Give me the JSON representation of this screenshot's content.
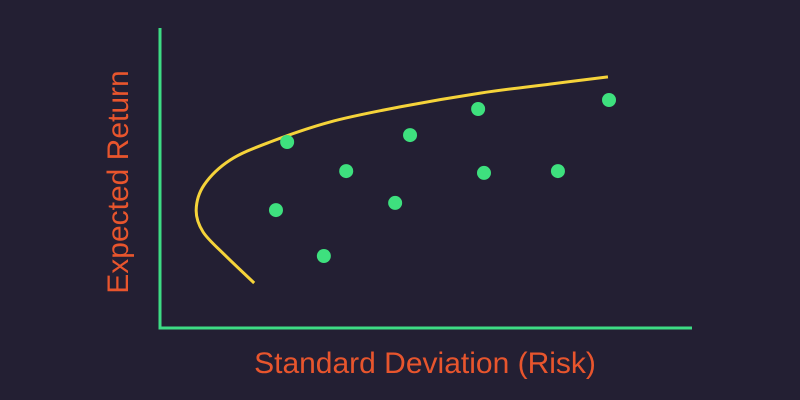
{
  "chart_data": {
    "type": "scatter",
    "x_label": "Standard Deviation (Risk)",
    "y_label": "Expected Return",
    "xlim": [
      0,
      100
    ],
    "ylim": [
      0,
      100
    ],
    "axis_color": "#3ddc84",
    "points": {
      "color": "#3ee07e",
      "x": [
        23.9,
        47.0,
        59.8,
        84.4,
        35.0,
        60.9,
        74.8,
        21.8,
        44.2,
        30.8
      ],
      "y": [
        62.0,
        64.3,
        73.0,
        76.0,
        52.3,
        51.7,
        52.3,
        39.3,
        41.7,
        24.0
      ]
    },
    "curve": {
      "color": "#f5d33a",
      "x": [
        17.7,
        12.2,
        8.1,
        6.8,
        8.3,
        13.2,
        20.7,
        32.0,
        45.1,
        60.2,
        73.3,
        84.2
      ],
      "y": [
        15.0,
        24.3,
        32.0,
        39.3,
        47.7,
        56.0,
        62.0,
        68.7,
        73.7,
        78.3,
        81.3,
        83.7
      ]
    }
  }
}
